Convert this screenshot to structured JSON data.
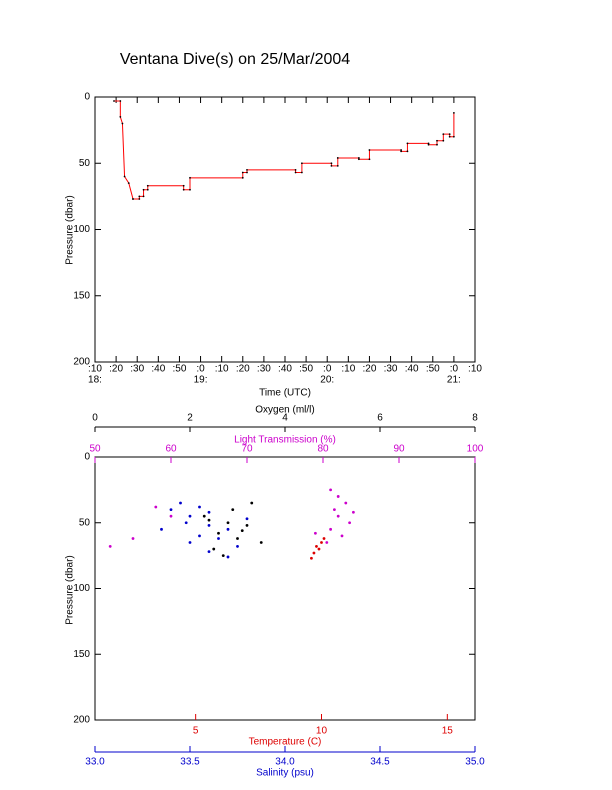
{
  "chart_data": [
    {
      "type": "line",
      "title": "Ventana Dive(s) on 25/Mar/2004",
      "x_label": "Time (UTC)",
      "y_label": "Pressure (dbar)",
      "xlim": [
        10,
        190
      ],
      "ylim": [
        0,
        200
      ],
      "y_inverted": true,
      "xticks": [
        {
          "value": 10,
          "label": ":10"
        },
        {
          "value": 20,
          "label": ":20"
        },
        {
          "value": 30,
          "label": ":30"
        },
        {
          "value": 40,
          "label": ":40"
        },
        {
          "value": 50,
          "label": ":50"
        },
        {
          "value": 60,
          "label": ":0"
        },
        {
          "value": 70,
          "label": ":10"
        },
        {
          "value": 80,
          "label": ":20"
        },
        {
          "value": 90,
          "label": ":30"
        },
        {
          "value": 100,
          "label": ":40"
        },
        {
          "value": 110,
          "label": ":50"
        },
        {
          "value": 120,
          "label": ":0"
        },
        {
          "value": 130,
          "label": ":10"
        },
        {
          "value": 140,
          "label": ":20"
        },
        {
          "value": 150,
          "label": ":30"
        },
        {
          "value": 160,
          "label": ":40"
        },
        {
          "value": 170,
          "label": ":50"
        },
        {
          "value": 180,
          "label": ":0"
        },
        {
          "value": 190,
          "label": ":10"
        }
      ],
      "x_hour_labels": [
        {
          "value": 10,
          "label": "18:"
        },
        {
          "value": 60,
          "label": "19:"
        },
        {
          "value": 120,
          "label": "20:"
        },
        {
          "value": 180,
          "label": "21:"
        }
      ],
      "yticks": [
        0,
        50,
        100,
        150,
        200
      ],
      "series": [
        {
          "color": "#ff0000",
          "marker_color": "#000000",
          "x": [
            19,
            22,
            22,
            23,
            24,
            26,
            28,
            28,
            31,
            31,
            33,
            33,
            35,
            35,
            52,
            52,
            55,
            55,
            80,
            80,
            82,
            82,
            105,
            105,
            108,
            108,
            122,
            122,
            125,
            125,
            135,
            135,
            140,
            140,
            155,
            155,
            158,
            158,
            168,
            168,
            172,
            172,
            175,
            175,
            178,
            178,
            180,
            180
          ],
          "values": [
            3,
            3,
            15,
            20,
            60,
            65,
            77,
            77,
            77,
            75,
            75,
            70,
            70,
            67,
            67,
            70,
            70,
            61,
            61,
            57,
            57,
            55,
            55,
            57,
            57,
            50,
            50,
            52,
            52,
            46,
            46,
            47,
            47,
            40,
            40,
            41,
            41,
            35,
            35,
            36,
            36,
            33,
            33,
            28,
            28,
            30,
            30,
            12
          ]
        }
      ]
    },
    {
      "type": "scatter",
      "y_label": "Pressure (dbar)",
      "ylim": [
        0,
        200
      ],
      "y_inverted": true,
      "yticks": [
        0,
        50,
        100,
        150,
        200
      ],
      "xaxes": [
        {
          "label": "Oxygen (ml/l)",
          "color": "#000000",
          "lim": [
            0,
            8
          ],
          "ticks": [
            0,
            2,
            4,
            6,
            8
          ]
        },
        {
          "label": "Light Transmission (%)",
          "color": "#cc00cc",
          "lim": [
            50,
            100
          ],
          "ticks": [
            50,
            60,
            70,
            80,
            90,
            100
          ]
        },
        {
          "label": "Temperature (C)",
          "color": "#dd0000",
          "lim": [
            1,
            16.1
          ],
          "ticks": [
            5,
            10,
            15
          ]
        },
        {
          "label": "Salinity (psu)",
          "color": "#0000cc",
          "lim": [
            33,
            35
          ],
          "ticks": [
            {
              "value": 33,
              "label": "33.0"
            },
            33.5,
            {
              "value": 34,
              "label": "34.0"
            },
            34.5,
            {
              "value": 35,
              "label": "35.0"
            }
          ]
        }
      ],
      "series": [
        {
          "xaxis": 3,
          "color": "#0000cc",
          "x": [
            33.45,
            33.55,
            33.6,
            33.5,
            33.48,
            33.6,
            33.7,
            33.55,
            33.65,
            33.75,
            33.6,
            33.7,
            33.4,
            33.8,
            33.35,
            33.5
          ],
          "values": [
            35,
            38,
            42,
            45,
            50,
            52,
            55,
            60,
            62,
            68,
            72,
            76,
            40,
            47,
            55,
            65
          ]
        },
        {
          "xaxis": 0,
          "color": "#000000",
          "x": [
            2.3,
            2.8,
            3.2,
            2.6,
            3.0,
            3.5,
            2.5,
            2.9,
            3.3,
            2.7,
            3.1,
            2.4
          ],
          "values": [
            45,
            50,
            52,
            58,
            62,
            65,
            70,
            40,
            35,
            75,
            56,
            48
          ]
        },
        {
          "xaxis": 1,
          "color": "#cc00cc",
          "x": [
            81,
            82,
            83,
            81.5,
            82,
            83.5,
            81,
            82.5,
            80.5,
            52,
            55,
            60,
            58,
            84,
            79
          ],
          "values": [
            25,
            30,
            35,
            40,
            45,
            50,
            55,
            60,
            65,
            68,
            62,
            45,
            38,
            42,
            58
          ]
        },
        {
          "xaxis": 2,
          "color": "#dd0000",
          "x": [
            9.8,
            9.9,
            9.7,
            9.6,
            10.0,
            10.1
          ],
          "values": [
            68,
            70,
            73,
            77,
            65,
            62
          ]
        }
      ]
    }
  ]
}
